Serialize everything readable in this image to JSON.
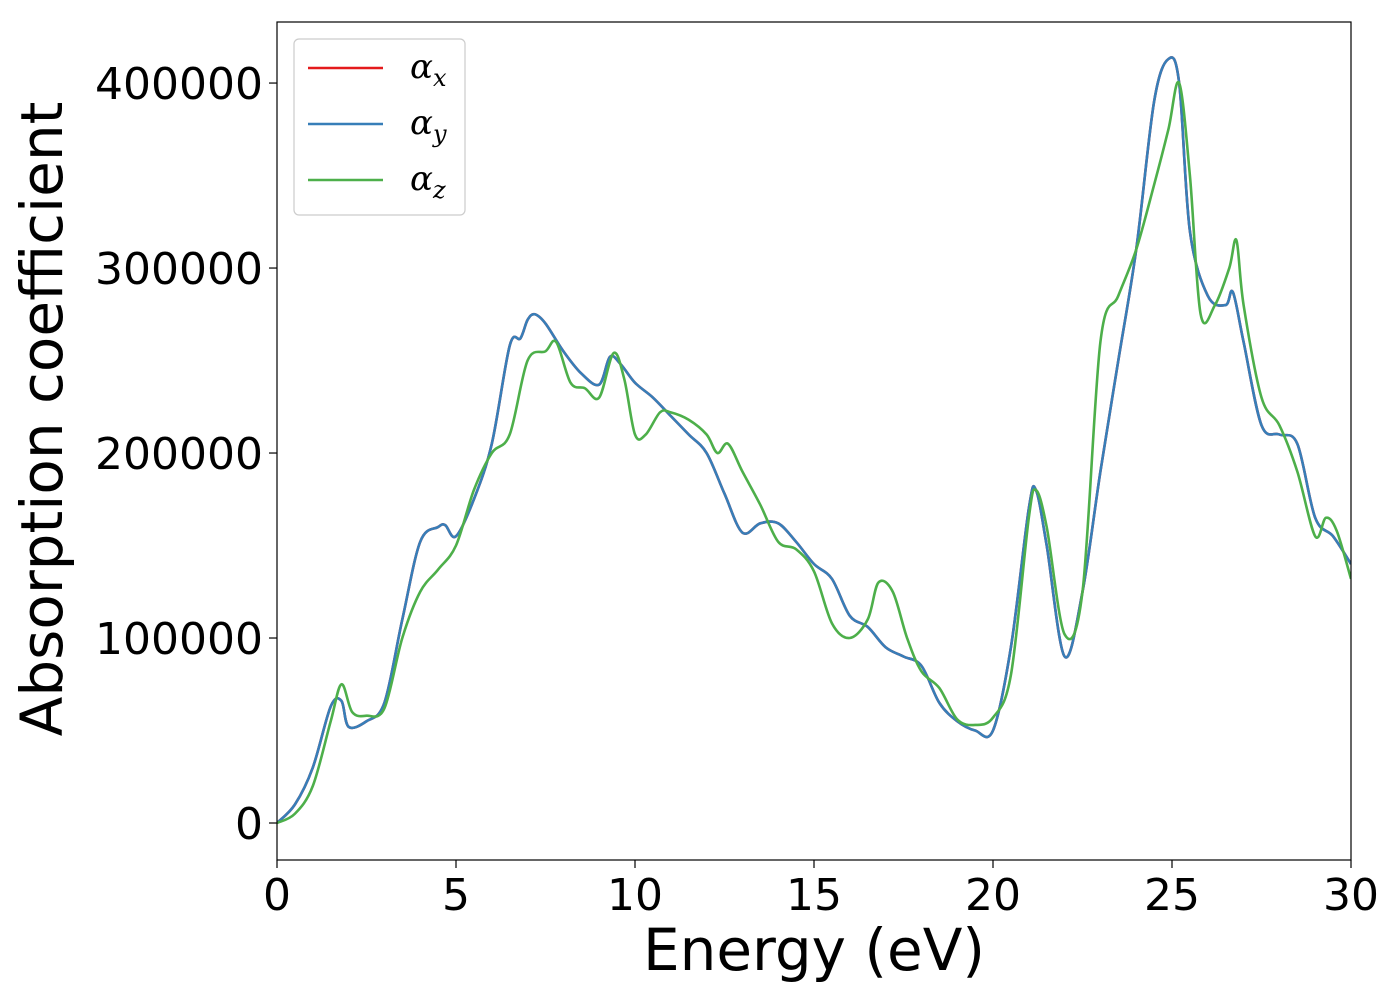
{
  "chart_data": {
    "type": "line",
    "xlabel": "Energy (eV)",
    "ylabel": "Absorption coefficient",
    "xlim": [
      0,
      30
    ],
    "ylim": [
      -20000,
      433000
    ],
    "xticks": [
      0,
      5,
      10,
      15,
      20,
      25,
      30
    ],
    "xtick_labels": [
      "0",
      "5",
      "10",
      "15",
      "20",
      "25",
      "30"
    ],
    "yticks": [
      0,
      100000,
      200000,
      300000,
      400000
    ],
    "ytick_labels": [
      "0",
      "100000",
      "200000",
      "300000",
      "400000"
    ],
    "grid": false,
    "legend_position": "upper-left",
    "series": [
      {
        "name": "α_x",
        "label_main": "α",
        "label_sub": "x",
        "color": "#e41a1c",
        "x": [
          0,
          0.5,
          1,
          1.5,
          1.8,
          2,
          2.5,
          3,
          3.5,
          4,
          4.5,
          4.7,
          5,
          5.5,
          6,
          6.5,
          6.8,
          7,
          7.2,
          7.5,
          8,
          8.5,
          9,
          9.3,
          9.6,
          10,
          10.5,
          11,
          11.5,
          12,
          12.5,
          13,
          13.5,
          14,
          14.5,
          15,
          15.5,
          16,
          16.5,
          17,
          17.5,
          18,
          18.5,
          19,
          19.5,
          20,
          20.5,
          21,
          21.2,
          21.5,
          22,
          22.5,
          23,
          23.5,
          24,
          24.5,
          24.9,
          25.2,
          25.5,
          26,
          26.5,
          26.7,
          27,
          27.5,
          28,
          28.5,
          29,
          29.5,
          30
        ],
        "y": [
          0,
          10000,
          30000,
          63000,
          66000,
          52000,
          55000,
          65000,
          110000,
          152000,
          160000,
          161000,
          155000,
          175000,
          205000,
          258000,
          262000,
          272000,
          275000,
          270000,
          255000,
          243000,
          237000,
          252000,
          248000,
          238000,
          230000,
          220000,
          210000,
          200000,
          178000,
          157000,
          162000,
          162000,
          152000,
          140000,
          132000,
          112000,
          106000,
          95000,
          90000,
          85000,
          65000,
          55000,
          50000,
          50000,
          95000,
          170000,
          180000,
          150000,
          90000,
          125000,
          190000,
          250000,
          310000,
          390000,
          413000,
          400000,
          320000,
          285000,
          280000,
          287000,
          260000,
          215000,
          210000,
          205000,
          165000,
          155000,
          140000
        ]
      },
      {
        "name": "α_y",
        "label_main": "α",
        "label_sub": "y",
        "color": "#377eb8",
        "x": [
          0,
          0.5,
          1,
          1.5,
          1.8,
          2,
          2.5,
          3,
          3.5,
          4,
          4.5,
          4.7,
          5,
          5.5,
          6,
          6.5,
          6.8,
          7,
          7.2,
          7.5,
          8,
          8.5,
          9,
          9.3,
          9.6,
          10,
          10.5,
          11,
          11.5,
          12,
          12.5,
          13,
          13.5,
          14,
          14.5,
          15,
          15.5,
          16,
          16.5,
          17,
          17.5,
          18,
          18.5,
          19,
          19.5,
          20,
          20.5,
          21,
          21.2,
          21.5,
          22,
          22.5,
          23,
          23.5,
          24,
          24.5,
          24.9,
          25.2,
          25.5,
          26,
          26.5,
          26.7,
          27,
          27.5,
          28,
          28.5,
          29,
          29.5,
          30
        ],
        "y": [
          0,
          10000,
          30000,
          63000,
          66000,
          52000,
          55000,
          65000,
          110000,
          152000,
          160000,
          161000,
          155000,
          175000,
          205000,
          258000,
          262000,
          272000,
          275000,
          270000,
          255000,
          243000,
          237000,
          252000,
          248000,
          238000,
          230000,
          220000,
          210000,
          200000,
          178000,
          157000,
          162000,
          162000,
          152000,
          140000,
          132000,
          112000,
          106000,
          95000,
          90000,
          85000,
          65000,
          55000,
          50000,
          50000,
          95000,
          170000,
          180000,
          150000,
          90000,
          125000,
          190000,
          250000,
          310000,
          390000,
          413000,
          400000,
          320000,
          285000,
          280000,
          287000,
          260000,
          215000,
          210000,
          205000,
          165000,
          155000,
          140000
        ]
      },
      {
        "name": "α_z",
        "label_main": "α",
        "label_sub": "z",
        "color": "#4daf4a",
        "x": [
          0,
          0.5,
          1,
          1.5,
          1.8,
          2.1,
          2.5,
          3,
          3.5,
          4,
          4.5,
          5,
          5.5,
          6,
          6.5,
          7,
          7.5,
          7.8,
          8.2,
          8.6,
          9,
          9.4,
          9.7,
          10,
          10.3,
          10.7,
          11,
          11.5,
          12,
          12.3,
          12.6,
          13,
          13.5,
          14,
          14.5,
          15,
          15.5,
          16,
          16.5,
          16.8,
          17.2,
          17.6,
          18,
          18.5,
          19,
          19.5,
          20,
          20.5,
          21,
          21.2,
          21.5,
          22,
          22.5,
          23,
          23.5,
          24,
          24.5,
          24.9,
          25.2,
          25.5,
          25.8,
          26.2,
          26.6,
          26.8,
          27,
          27.5,
          28,
          28.5,
          29,
          29.3,
          29.6,
          30
        ],
        "y": [
          0,
          5000,
          20000,
          55000,
          75000,
          60000,
          58000,
          62000,
          100000,
          125000,
          137000,
          150000,
          180000,
          200000,
          210000,
          250000,
          255000,
          260000,
          238000,
          235000,
          230000,
          254000,
          240000,
          210000,
          210000,
          222000,
          222000,
          218000,
          210000,
          200000,
          205000,
          190000,
          172000,
          152000,
          148000,
          136000,
          108000,
          100000,
          110000,
          130000,
          125000,
          100000,
          82000,
          73000,
          56000,
          53000,
          57000,
          80000,
          165000,
          180000,
          160000,
          102000,
          125000,
          260000,
          285000,
          310000,
          345000,
          375000,
          400000,
          350000,
          275000,
          280000,
          300000,
          315000,
          280000,
          230000,
          215000,
          190000,
          155000,
          165000,
          158000,
          132000
        ]
      }
    ]
  }
}
